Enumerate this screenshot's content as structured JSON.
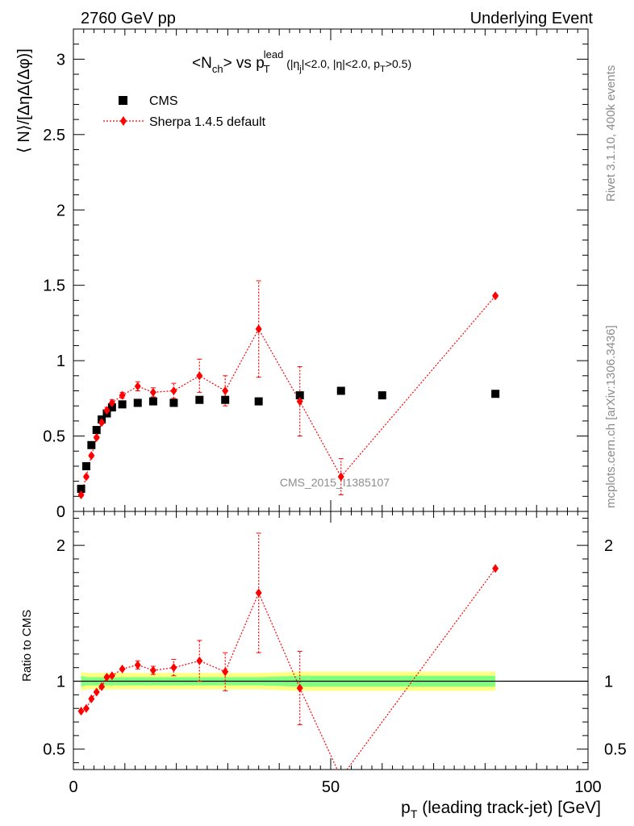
{
  "header": {
    "energy_label": "2760 GeV pp",
    "process_label": "Underlying Event"
  },
  "side_labels": {
    "rivet": "Rivet 3.1.10,  400k events",
    "mcplots": "mcplots.cern.ch [arXiv:1306.3436]"
  },
  "watermark": "CMS_2015_I1385107",
  "legend": {
    "cms_label": "CMS",
    "sherpa_label": "Sherpa 1.4.5 default"
  },
  "colors": {
    "data": "#000000",
    "mc": "#ff0000",
    "band_inner": "#80ff80",
    "band_outer": "#ffff80"
  },
  "chart_data": [
    {
      "type": "scatter",
      "title": "<N_ch> vs p_T^lead (|η_j|<2.0, |η|<2.0, p_T>0.5)",
      "xlabel": "p_T (leading track-jet) [GeV]",
      "ylabel": "⟨ N⟩/[ΔηΔ(Δφ)]",
      "xlim": [
        0,
        100
      ],
      "ylim": [
        0,
        3.2
      ],
      "x_ticks": [
        0,
        50,
        100
      ],
      "y_ticks": [
        0,
        0.5,
        1,
        1.5,
        2,
        2.5,
        3
      ],
      "legend_position": "top-left",
      "series": [
        {
          "name": "CMS",
          "marker": "square",
          "x": [
            1.5,
            2.5,
            3.5,
            4.5,
            5.5,
            6.5,
            7.5,
            9.5,
            12.5,
            15.5,
            19.5,
            24.5,
            29.5,
            36,
            44,
            52,
            60,
            82
          ],
          "y": [
            0.15,
            0.3,
            0.44,
            0.54,
            0.61,
            0.65,
            0.69,
            0.71,
            0.72,
            0.73,
            0.72,
            0.74,
            0.74,
            0.73,
            0.77,
            0.8,
            0.77,
            0.78
          ]
        },
        {
          "name": "Sherpa 1.4.5 default",
          "marker": "diamond",
          "x": [
            1.5,
            2.5,
            3.5,
            4.5,
            5.5,
            6.5,
            7.5,
            9.5,
            12.5,
            15.5,
            19.5,
            24.5,
            29.5,
            36,
            44,
            52,
            82
          ],
          "y": [
            0.11,
            0.23,
            0.37,
            0.49,
            0.59,
            0.67,
            0.72,
            0.77,
            0.83,
            0.79,
            0.8,
            0.9,
            0.8,
            1.21,
            0.73,
            0.23,
            1.43
          ],
          "err": [
            0.01,
            0.01,
            0.01,
            0.01,
            0.01,
            0.02,
            0.02,
            0.02,
            0.03,
            0.03,
            0.05,
            0.11,
            0.1,
            0.32,
            0.23,
            0.12,
            0.01
          ]
        }
      ]
    },
    {
      "type": "scatter",
      "title": "",
      "xlabel": "p_T (leading track-jet) [GeV]",
      "ylabel": "Ratio to CMS",
      "xlim": [
        0,
        100
      ],
      "ylim": [
        0.35,
        2.25
      ],
      "x_ticks": [
        0,
        50,
        100
      ],
      "y_ticks": [
        0.5,
        1,
        2
      ],
      "series": [
        {
          "name": "Sherpa 1.4.5 default",
          "marker": "diamond",
          "x": [
            1.5,
            2.5,
            3.5,
            4.5,
            5.5,
            6.5,
            7.5,
            9.5,
            12.5,
            15.5,
            19.5,
            24.5,
            29.5,
            36,
            44,
            82
          ],
          "y": [
            0.78,
            0.8,
            0.87,
            0.92,
            0.96,
            1.03,
            1.04,
            1.09,
            1.12,
            1.08,
            1.1,
            1.15,
            1.07,
            1.65,
            0.95,
            1.83
          ],
          "err": [
            0.01,
            0.01,
            0.01,
            0.01,
            0.01,
            0.02,
            0.02,
            0.02,
            0.03,
            0.03,
            0.06,
            0.15,
            0.14,
            0.44,
            0.27,
            0.01
          ]
        }
      ],
      "offscale_segment": {
        "from": [
          44,
          0.95
        ],
        "to": [
          82,
          1.83
        ],
        "hidden_point": [
          52,
          0.29
        ]
      },
      "bands": {
        "x": [
          1.5,
          2.5,
          3.5,
          4.5,
          5.5,
          6.5,
          7.5,
          9.5,
          12.5,
          15.5,
          19.5,
          24.5,
          29.5,
          36,
          44,
          52,
          60,
          82
        ],
        "inner": [
          0.04,
          0.03,
          0.03,
          0.03,
          0.03,
          0.03,
          0.03,
          0.03,
          0.03,
          0.03,
          0.03,
          0.03,
          0.03,
          0.03,
          0.04,
          0.04,
          0.04,
          0.04
        ],
        "outer": [
          0.07,
          0.06,
          0.06,
          0.06,
          0.06,
          0.06,
          0.06,
          0.06,
          0.06,
          0.06,
          0.06,
          0.06,
          0.06,
          0.06,
          0.07,
          0.07,
          0.07,
          0.07
        ]
      }
    }
  ]
}
